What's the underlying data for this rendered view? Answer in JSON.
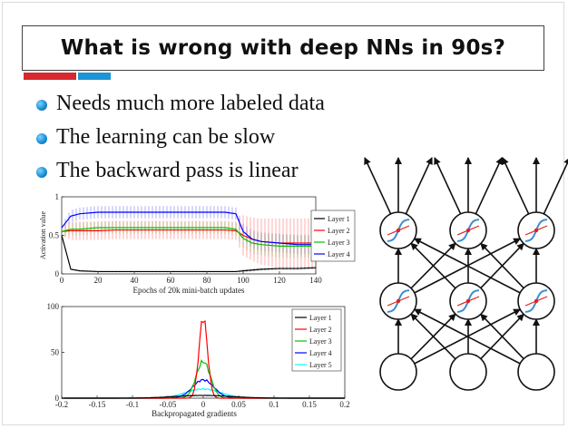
{
  "slide": {
    "title": "What is wrong with deep NNs in 90s?",
    "bullets": [
      {
        "text": "Needs much more labeled data"
      },
      {
        "text": "The learning can be slow"
      },
      {
        "text": "The backward pass is linear"
      }
    ]
  },
  "colors": {
    "accent_red": "#d7282f",
    "accent_blue": "#1b95d6",
    "layer1": "#000000",
    "layer2": "#ff0000",
    "layer3": "#00c000",
    "layer4": "#0000ff",
    "layer5": "#00ffff"
  },
  "chart_data": [
    {
      "type": "line",
      "xlabel": "Epochs of 20k mini-batch updates",
      "ylabel": "Activation value",
      "xlim": [
        0,
        140
      ],
      "ylim": [
        0,
        1
      ],
      "x_ticks": [
        0,
        20,
        40,
        60,
        80,
        100,
        120,
        140
      ],
      "y_ticks": [
        0,
        0.5,
        1
      ],
      "y_tick_labels": [
        "0",
        "0.5",
        "1"
      ],
      "legend_position": "top-right",
      "x": [
        0,
        5,
        10,
        20,
        30,
        40,
        50,
        60,
        70,
        80,
        90,
        96,
        100,
        105,
        110,
        120,
        130,
        140
      ],
      "series": [
        {
          "name": "Layer 1",
          "color": "#000000",
          "values": [
            0.5,
            0.06,
            0.04,
            0.03,
            0.03,
            0.03,
            0.03,
            0.03,
            0.03,
            0.03,
            0.03,
            0.03,
            0.04,
            0.05,
            0.06,
            0.07,
            0.07,
            0.08
          ],
          "spread": [
            0.02,
            0.01,
            0.01,
            0.01,
            0.01,
            0.01,
            0.01,
            0.01,
            0.01,
            0.01,
            0.01,
            0.01,
            0.02,
            0.02,
            0.02,
            0.02,
            0.02,
            0.02
          ]
        },
        {
          "name": "Layer 2",
          "color": "#ff0000",
          "values": [
            0.55,
            0.56,
            0.56,
            0.56,
            0.57,
            0.57,
            0.57,
            0.57,
            0.57,
            0.57,
            0.57,
            0.56,
            0.5,
            0.45,
            0.42,
            0.4,
            0.4,
            0.4
          ],
          "spread": [
            0.05,
            0.12,
            0.12,
            0.12,
            0.12,
            0.12,
            0.12,
            0.12,
            0.12,
            0.12,
            0.12,
            0.12,
            0.26,
            0.28,
            0.3,
            0.32,
            0.32,
            0.32
          ]
        },
        {
          "name": "Layer 3",
          "color": "#00c000",
          "values": [
            0.55,
            0.58,
            0.58,
            0.6,
            0.6,
            0.6,
            0.6,
            0.6,
            0.6,
            0.6,
            0.6,
            0.58,
            0.46,
            0.4,
            0.38,
            0.36,
            0.36,
            0.36
          ],
          "spread": [
            0.04,
            0.08,
            0.08,
            0.08,
            0.08,
            0.08,
            0.08,
            0.08,
            0.08,
            0.08,
            0.08,
            0.08,
            0.12,
            0.14,
            0.14,
            0.15,
            0.15,
            0.15
          ]
        },
        {
          "name": "Layer 4",
          "color": "#0000ff",
          "values": [
            0.6,
            0.75,
            0.78,
            0.8,
            0.8,
            0.8,
            0.8,
            0.8,
            0.8,
            0.8,
            0.8,
            0.78,
            0.55,
            0.45,
            0.42,
            0.4,
            0.38,
            0.38
          ],
          "spread": [
            0.04,
            0.08,
            0.08,
            0.08,
            0.08,
            0.08,
            0.08,
            0.08,
            0.08,
            0.08,
            0.08,
            0.08,
            0.1,
            0.12,
            0.12,
            0.12,
            0.12,
            0.12
          ]
        }
      ]
    },
    {
      "type": "line",
      "xlabel": "Backpropagated gradients",
      "ylabel": "",
      "xlim": [
        -0.2,
        0.2
      ],
      "ylim": [
        0,
        100
      ],
      "x_ticks": [
        -0.2,
        -0.15,
        -0.1,
        -0.05,
        0,
        0.05,
        0.1,
        0.15,
        0.2
      ],
      "x_tick_labels": [
        "-0.2",
        "-0.15",
        "-0.1",
        "-0.05",
        "0",
        "0.05",
        "0.1",
        "0.15",
        "0.2"
      ],
      "y_ticks": [
        0,
        50,
        100
      ],
      "legend_position": "top-right",
      "series": [
        {
          "name": "Layer 1",
          "color": "#000000",
          "peak": 3,
          "width": 0.04
        },
        {
          "name": "Layer 2",
          "color": "#ff0000",
          "peak": 88,
          "width": 0.006
        },
        {
          "name": "Layer 3",
          "color": "#00c000",
          "peak": 40,
          "width": 0.01
        },
        {
          "name": "Layer 4",
          "color": "#0000ff",
          "peak": 20,
          "width": 0.015
        },
        {
          "name": "Layer 5",
          "color": "#00ffff",
          "peak": 10,
          "width": 0.025
        }
      ]
    }
  ],
  "network": {
    "columns": 3,
    "rows": 3,
    "hidden_rows": 2
  }
}
